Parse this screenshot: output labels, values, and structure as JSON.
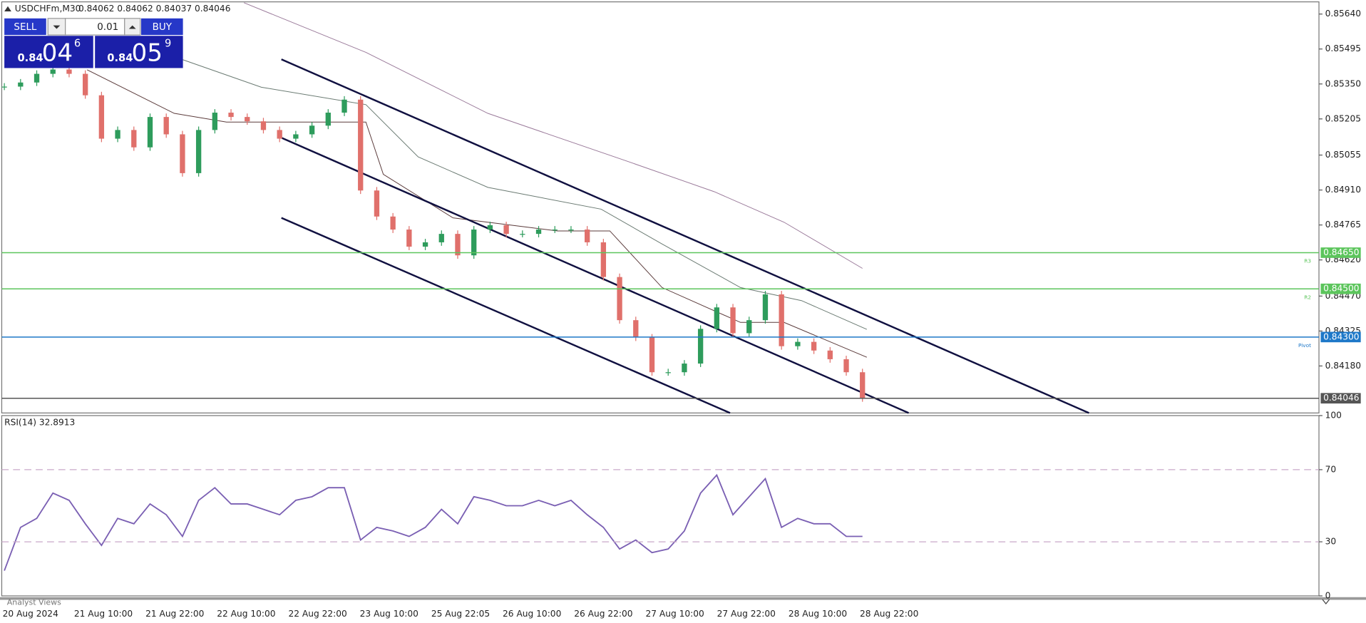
{
  "header": {
    "symbol": "USDCHFm,M30",
    "ohlc": "0.84062 0.84062 0.84037 0.84046"
  },
  "trade_panel": {
    "sell": "SELL",
    "buy": "BUY",
    "lot": "0.01",
    "sell_price": {
      "big": "0.84",
      "main": "04",
      "sup": "6"
    },
    "buy_price": {
      "big": "0.84",
      "main": "05",
      "sup": "9"
    }
  },
  "chart_data": [
    {
      "type": "candlestick",
      "x_labels": [
        "20 Aug 2024",
        "21 Aug 10:00",
        "21 Aug 22:00",
        "22 Aug 10:00",
        "22 Aug 22:00",
        "23 Aug 10:00",
        "25 Aug 22:05",
        "26 Aug 10:00",
        "26 Aug 22:00",
        "27 Aug 10:00",
        "27 Aug 22:00",
        "28 Aug 10:00",
        "28 Aug 22:00"
      ],
      "series": [
        {
          "name": "USDCHFm",
          "up_color": "#2e9c5c",
          "down_color": "#e0706b",
          "values": [
            0.85339,
            0.85356,
            0.85392,
            0.8541,
            0.85392,
            0.85303,
            0.85123,
            0.85159,
            0.85087,
            0.85213,
            0.85141,
            0.8498,
            0.85159,
            0.85231,
            0.85213,
            0.85195,
            0.85159,
            0.85123,
            0.85141,
            0.85177,
            0.85231,
            0.85285,
            0.84908,
            0.848,
            0.84746,
            0.84675,
            0.84693,
            0.84728,
            0.84639,
            0.84746,
            0.84764,
            0.84728,
            0.84728,
            0.84746,
            0.84746,
            0.84746,
            0.84693,
            0.84549,
            0.8437,
            0.84298,
            0.84154,
            0.84154,
            0.8419,
            0.84334,
            0.84423,
            0.84316,
            0.8437,
            0.84477,
            0.84262,
            0.8428,
            0.84244,
            0.84208,
            0.84154,
            0.84046
          ]
        }
      ],
      "ylim": [
        0.83985,
        0.85687
      ],
      "yticks": [
        {
          "value": 0.8564,
          "label": "0.85640"
        },
        {
          "value": 0.85495,
          "label": "0.85495"
        },
        {
          "value": 0.8535,
          "label": "0.85350"
        },
        {
          "value": 0.85205,
          "label": "0.85205"
        },
        {
          "value": 0.85055,
          "label": "0.85055"
        },
        {
          "value": 0.8491,
          "label": "0.84910"
        },
        {
          "value": 0.84765,
          "label": "0.84765"
        },
        {
          "value": 0.8462,
          "label": "0.84620"
        },
        {
          "value": 0.8447,
          "label": "0.84470"
        },
        {
          "value": 0.84325,
          "label": "0.84325"
        },
        {
          "value": 0.8418,
          "label": "0.84180"
        }
      ],
      "levels": [
        {
          "value": 0.8465,
          "label": "0.84650",
          "tag": "R3",
          "color": "#5cc55c"
        },
        {
          "value": 0.845,
          "label": "0.84500",
          "tag": "R2",
          "color": "#5cc55c"
        },
        {
          "value": 0.843,
          "label": "0.84300",
          "tag": "Pivot",
          "color": "#1e78c8"
        },
        {
          "value": 0.84046,
          "color": "#555555"
        }
      ]
    },
    {
      "type": "line",
      "title": "RSI(14) 32.8913",
      "series": [
        {
          "name": "RSI(14)",
          "color": "#7a5fb3",
          "values": [
            14,
            38,
            43,
            57,
            53,
            40,
            28,
            43,
            40,
            51,
            45,
            33,
            53,
            60,
            51,
            51,
            48,
            45,
            53,
            55,
            60,
            60,
            31,
            38,
            36,
            33,
            38,
            48,
            40,
            55,
            53,
            50,
            50,
            53,
            50,
            53,
            45,
            38,
            26,
            31,
            24,
            26,
            36,
            57,
            67,
            45,
            55,
            65,
            38,
            43,
            40,
            40,
            33,
            33
          ]
        }
      ],
      "ylim": [
        0,
        100
      ],
      "yticks": [
        0,
        30,
        70,
        100
      ],
      "levels": [
        30,
        70
      ]
    }
  ],
  "footer": {
    "tab": "Analyst Views"
  }
}
